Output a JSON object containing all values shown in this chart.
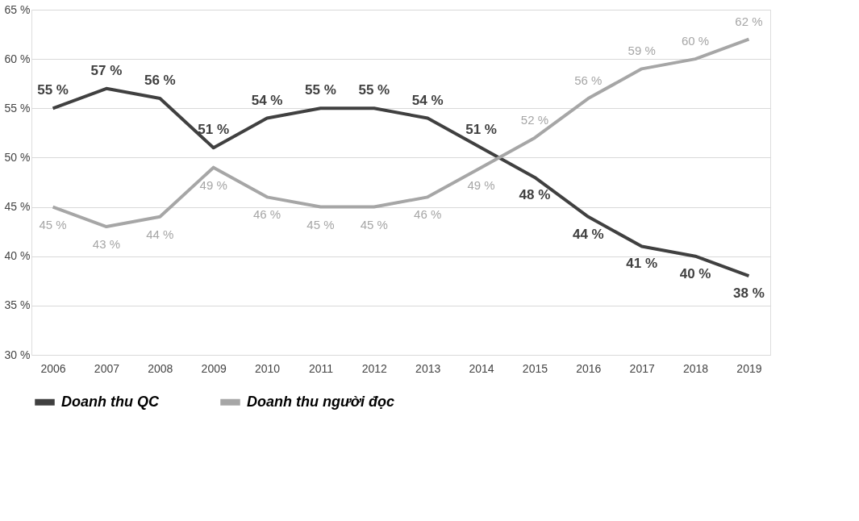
{
  "chart_data": {
    "type": "line",
    "categories": [
      "2006",
      "2007",
      "2008",
      "2009",
      "2010",
      "2011",
      "2012",
      "2013",
      "2014",
      "2015",
      "2016",
      "2017",
      "2018",
      "2019"
    ],
    "ylim": [
      30,
      65
    ],
    "yticks": [
      {
        "value": 30,
        "label": "30 %"
      },
      {
        "value": 35,
        "label": "35 %"
      },
      {
        "value": 40,
        "label": "40 %"
      },
      {
        "value": 45,
        "label": "45 %"
      },
      {
        "value": 50,
        "label": "50 %"
      },
      {
        "value": 55,
        "label": "55 %"
      },
      {
        "value": 60,
        "label": "60 %"
      },
      {
        "value": 65,
        "label": "65 %"
      }
    ],
    "grid": "y",
    "legend": "bottom",
    "marker": "none",
    "line_style": "solid",
    "series": [
      {
        "name": "Doanh thu QC",
        "color": "#404040",
        "values": [
          55,
          57,
          56,
          51,
          54,
          55,
          55,
          54,
          51,
          48,
          44,
          41,
          40,
          38
        ],
        "value_labels": [
          "55 %",
          "57 %",
          "56 %",
          "51 %",
          "54 %",
          "55 %",
          "55 %",
          "54 %",
          "51 %",
          "48 %",
          "44 %",
          "41 %",
          "40 %",
          "38 %"
        ]
      },
      {
        "name": "Doanh thu người đọc",
        "color": "#a6a6a6",
        "values": [
          45,
          43,
          44,
          49,
          46,
          45,
          45,
          46,
          49,
          52,
          56,
          59,
          60,
          62
        ],
        "value_labels": [
          "45 %",
          "43 %",
          "44 %",
          "49 %",
          "46 %",
          "45 %",
          "45 %",
          "46 %",
          "49 %",
          "52 %",
          "56 %",
          "59 %",
          "60 %",
          "62 %"
        ]
      }
    ]
  }
}
